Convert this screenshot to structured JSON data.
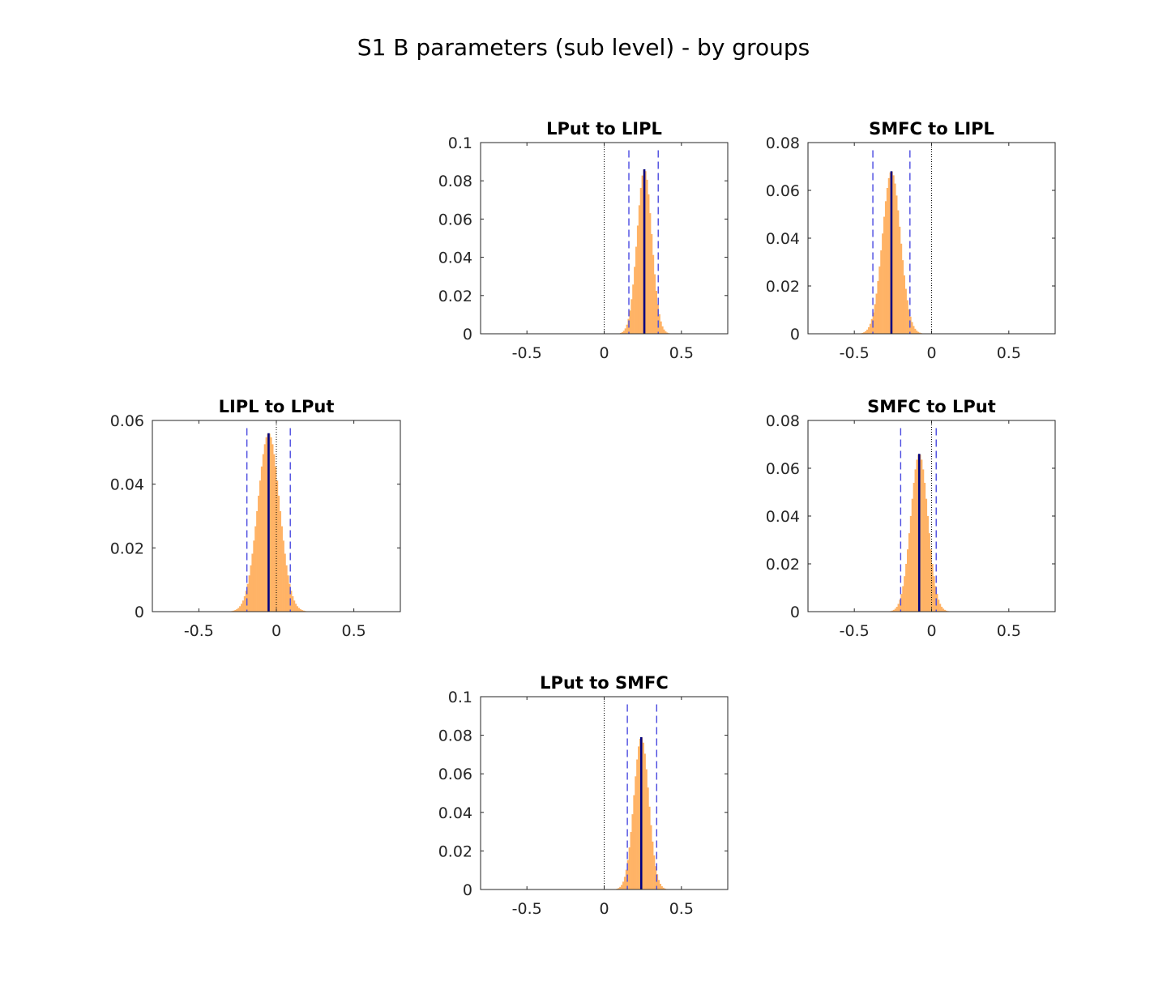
{
  "figure_title": "S1 B parameters (sub level) - by groups",
  "colors": {
    "histogram": "#ffb366",
    "mean": "#000080",
    "ci": "#4a4ae0",
    "zero": "#000000",
    "axes": "#262626"
  },
  "chart_data": [
    {
      "type": "bar",
      "title": "LPut to LIPL",
      "xlim": [
        -0.8,
        0.8
      ],
      "xticks": [
        "-0.5",
        "0",
        "0.5"
      ],
      "ylim": [
        0,
        0.1
      ],
      "yticks": [
        "0",
        "0.02",
        "0.04",
        "0.06",
        "0.08",
        "0.1"
      ],
      "mean": 0.26,
      "ci": [
        0.16,
        0.35
      ],
      "dist_center": 0.26,
      "dist_sd": 0.047,
      "dist_peak": 0.086
    },
    {
      "type": "bar",
      "title": "SMFC to LIPL",
      "xlim": [
        -0.8,
        0.8
      ],
      "xticks": [
        "-0.5",
        "0",
        "0.5"
      ],
      "ylim": [
        0,
        0.08
      ],
      "yticks": [
        "0",
        "0.02",
        "0.04",
        "0.06",
        "0.08"
      ],
      "mean": -0.26,
      "ci": [
        -0.38,
        -0.14
      ],
      "dist_center": -0.26,
      "dist_sd": 0.058,
      "dist_peak": 0.068
    },
    {
      "type": "bar",
      "title": "LIPL to LPut",
      "xlim": [
        -0.8,
        0.8
      ],
      "xticks": [
        "-0.5",
        "0",
        "0.5"
      ],
      "ylim": [
        0,
        0.06
      ],
      "yticks": [
        "0",
        "0.02",
        "0.04",
        "0.06"
      ],
      "mean": -0.05,
      "ci": [
        -0.19,
        0.09
      ],
      "dist_center": -0.05,
      "dist_sd": 0.07,
      "dist_peak": 0.056
    },
    {
      "type": "bar",
      "title": "SMFC to LPut",
      "xlim": [
        -0.8,
        0.8
      ],
      "xticks": [
        "-0.5",
        "0",
        "0.5"
      ],
      "ylim": [
        0,
        0.08
      ],
      "yticks": [
        "0",
        "0.02",
        "0.04",
        "0.06",
        "0.08"
      ],
      "mean": -0.08,
      "ci": [
        -0.2,
        0.03
      ],
      "dist_center": -0.08,
      "dist_sd": 0.055,
      "dist_peak": 0.066
    },
    {
      "type": "bar",
      "title": "LPut to SMFC",
      "xlim": [
        -0.8,
        0.8
      ],
      "xticks": [
        "-0.5",
        "0",
        "0.5"
      ],
      "ylim": [
        0,
        0.1
      ],
      "yticks": [
        "0",
        "0.02",
        "0.04",
        "0.06",
        "0.08",
        "0.1"
      ],
      "mean": 0.24,
      "ci": [
        0.15,
        0.34
      ],
      "dist_center": 0.24,
      "dist_sd": 0.048,
      "dist_peak": 0.079
    }
  ]
}
